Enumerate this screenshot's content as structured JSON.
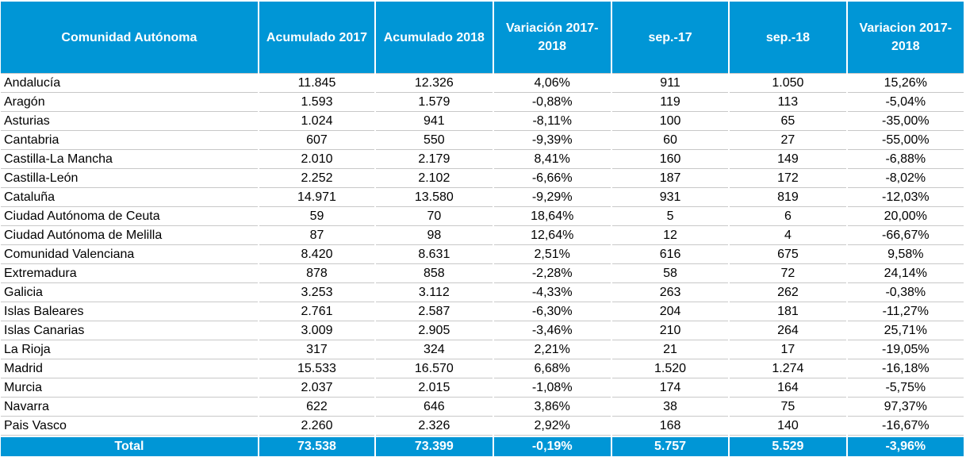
{
  "headers": [
    "Comunidad Autónoma",
    "Acumulado 2017",
    "Acumulado 2018",
    "Variación 2017-2018",
    "sep.-17",
    "sep.-18",
    "Variacion 2017-2018"
  ],
  "rows": [
    [
      "Andalucía",
      "11.845",
      "12.326",
      "4,06%",
      "911",
      "1.050",
      "15,26%"
    ],
    [
      "Aragón",
      "1.593",
      "1.579",
      "-0,88%",
      "119",
      "113",
      "-5,04%"
    ],
    [
      "Asturias",
      "1.024",
      "941",
      "-8,11%",
      "100",
      "65",
      "-35,00%"
    ],
    [
      "Cantabria",
      "607",
      "550",
      "-9,39%",
      "60",
      "27",
      "-55,00%"
    ],
    [
      "Castilla-La Mancha",
      "2.010",
      "2.179",
      "8,41%",
      "160",
      "149",
      "-6,88%"
    ],
    [
      "Castilla-León",
      "2.252",
      "2.102",
      "-6,66%",
      "187",
      "172",
      "-8,02%"
    ],
    [
      "Cataluña",
      "14.971",
      "13.580",
      "-9,29%",
      "931",
      "819",
      "-12,03%"
    ],
    [
      "Ciudad Autónoma de Ceuta",
      "59",
      "70",
      "18,64%",
      "5",
      "6",
      "20,00%"
    ],
    [
      "Ciudad Autónoma de Melilla",
      "87",
      "98",
      "12,64%",
      "12",
      "4",
      "-66,67%"
    ],
    [
      "Comunidad Valenciana",
      "8.420",
      "8.631",
      "2,51%",
      "616",
      "675",
      "9,58%"
    ],
    [
      "Extremadura",
      "878",
      "858",
      "-2,28%",
      "58",
      "72",
      "24,14%"
    ],
    [
      "Galicia",
      "3.253",
      "3.112",
      "-4,33%",
      "263",
      "262",
      "-0,38%"
    ],
    [
      "Islas Baleares",
      "2.761",
      "2.587",
      "-6,30%",
      "204",
      "181",
      "-11,27%"
    ],
    [
      "Islas Canarias",
      "3.009",
      "2.905",
      "-3,46%",
      "210",
      "264",
      "25,71%"
    ],
    [
      "La Rioja",
      "317",
      "324",
      "2,21%",
      "21",
      "17",
      "-19,05%"
    ],
    [
      "Madrid",
      "15.533",
      "16.570",
      "6,68%",
      "1.520",
      "1.274",
      "-16,18%"
    ],
    [
      "Murcia",
      "2.037",
      "2.015",
      "-1,08%",
      "174",
      "164",
      "-5,75%"
    ],
    [
      "Navarra",
      "622",
      "646",
      "3,86%",
      "38",
      "75",
      "97,37%"
    ],
    [
      "Pais Vasco",
      "2.260",
      "2.326",
      "2,92%",
      "168",
      "140",
      "-16,67%"
    ]
  ],
  "total": [
    "Total",
    "73.538",
    "73.399",
    "-0,19%",
    "5.757",
    "5.529",
    "-3,96%"
  ],
  "colors": {
    "header_bg": "#0096d6",
    "header_text": "#ffffff",
    "grid_line": "#c8c8c8"
  }
}
